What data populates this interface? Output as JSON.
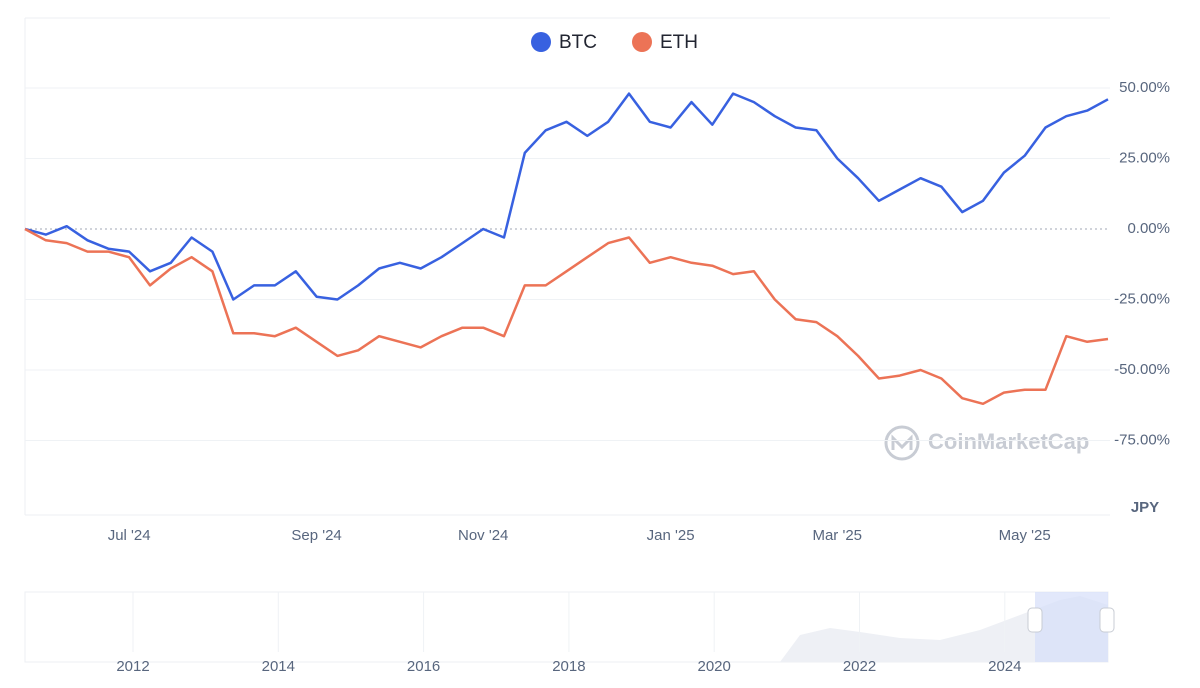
{
  "chart_data": {
    "type": "line",
    "categories": [
      null,
      null,
      null,
      null,
      null,
      "Jul '24",
      null,
      null,
      null,
      null,
      null,
      null,
      null,
      null,
      "Sep '24",
      null,
      null,
      null,
      null,
      null,
      null,
      null,
      "Nov '24",
      null,
      null,
      null,
      null,
      null,
      null,
      null,
      null,
      "Jan '25",
      null,
      null,
      null,
      null,
      null,
      null,
      null,
      "Mar '25",
      null,
      null,
      null,
      null,
      null,
      null,
      null,
      null,
      "May '25",
      null,
      null,
      null,
      null
    ],
    "series": [
      {
        "name": "BTC",
        "color": "#3861e0",
        "values": [
          0,
          -2,
          1,
          -4,
          -7,
          -8,
          -15,
          -12,
          -3,
          -8,
          -25,
          -20,
          -20,
          -15,
          -24,
          -25,
          -20,
          -14,
          -12,
          -14,
          -10,
          -5,
          0,
          -3,
          27,
          35,
          38,
          33,
          38,
          48,
          38,
          36,
          45,
          37,
          48,
          45,
          40,
          36,
          35,
          25,
          18,
          10,
          14,
          18,
          15,
          6,
          10,
          20,
          26,
          36,
          40,
          42,
          46
        ]
      },
      {
        "name": "ETH",
        "color": "#ec7356",
        "values": [
          0,
          -4,
          -5,
          -8,
          -8,
          -10,
          -20,
          -14,
          -10,
          -15,
          -37,
          -37,
          -38,
          -35,
          -40,
          -45,
          -43,
          -38,
          -40,
          -42,
          -38,
          -35,
          -35,
          -38,
          -20,
          -20,
          -15,
          -10,
          -5,
          -3,
          -12,
          -10,
          -12,
          -13,
          -16,
          -15,
          -25,
          -32,
          -33,
          -38,
          -45,
          -53,
          -52,
          -50,
          -53,
          -60,
          -62,
          -58,
          -57,
          -57,
          -38,
          -40,
          -39
        ]
      }
    ],
    "ylim": [
      -100,
      75
    ],
    "yticks": [
      {
        "value": 50,
        "label": "50.00%"
      },
      {
        "value": 25,
        "label": "25.00%"
      },
      {
        "value": 0,
        "label": "0.00%"
      },
      {
        "value": -25,
        "label": "-25.00%"
      },
      {
        "value": -50,
        "label": "-50.00%"
      },
      {
        "value": -75,
        "label": "-75.00%"
      }
    ],
    "grid": true,
    "currency": "JPY",
    "watermark": "CoinMarketCap",
    "navigator_labels": [
      "2012",
      "2014",
      "2016",
      "2018",
      "2020",
      "2022",
      "2024"
    ]
  }
}
